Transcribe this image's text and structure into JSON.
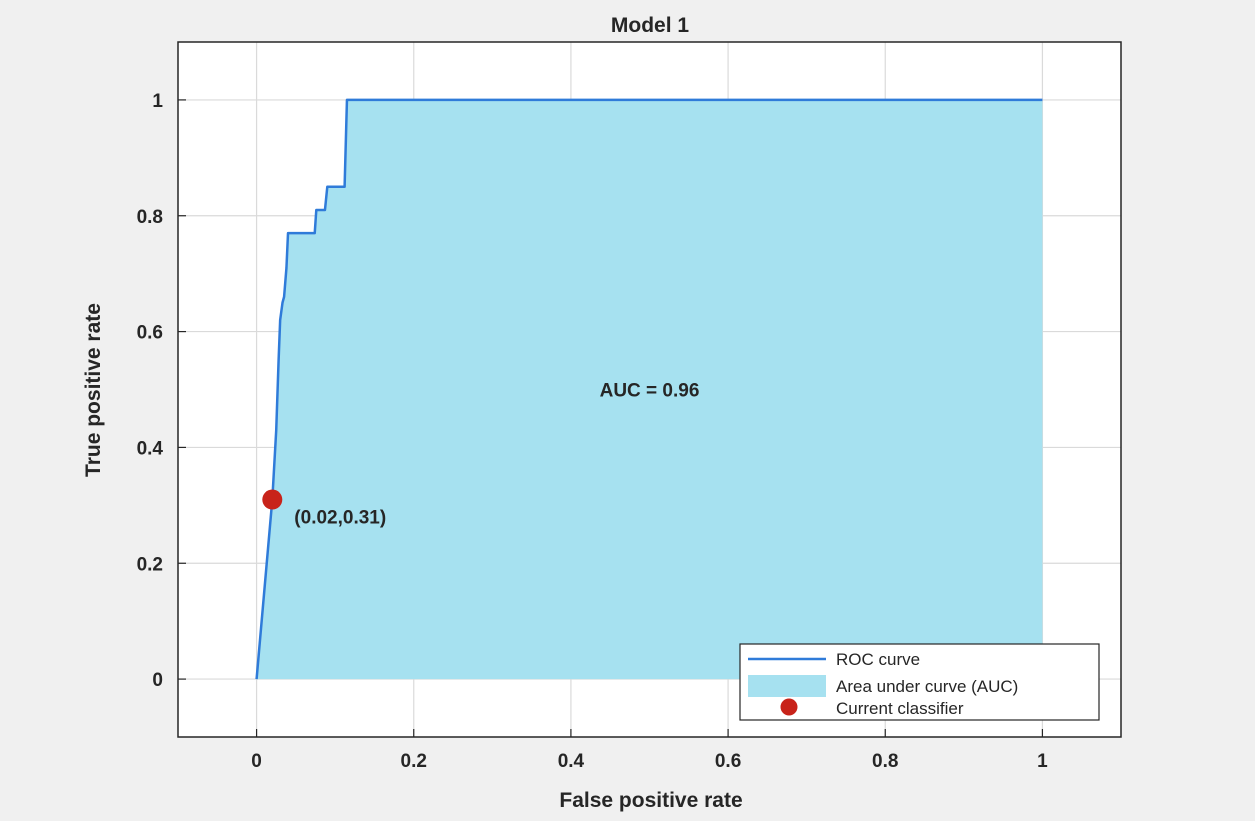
{
  "chart_data": {
    "type": "line",
    "title": "Model 1",
    "xlabel": "False positive rate",
    "ylabel": "True positive rate",
    "xlim": [
      -0.1,
      1.1
    ],
    "ylim": [
      -0.1,
      1.1
    ],
    "xticks": [
      0,
      0.2,
      0.4,
      0.6,
      0.8,
      1
    ],
    "yticks": [
      0,
      0.2,
      0.4,
      0.6,
      0.8,
      1
    ],
    "xtick_labels": [
      "0",
      "0.2",
      "0.4",
      "0.6",
      "0.8",
      "1"
    ],
    "ytick_labels": [
      "0",
      "0.2",
      "0.4",
      "0.6",
      "0.8",
      "1"
    ],
    "grid": true,
    "legend_position": "bottom-right",
    "series": [
      {
        "name": "ROC curve",
        "color": "#2f7bd9",
        "x": [
          0,
          0.02,
          0.025,
          0.028,
          0.03,
          0.033,
          0.035,
          0.038,
          0.04,
          0.074,
          0.076,
          0.087,
          0.09,
          0.1,
          0.102,
          0.112,
          0.115,
          1
        ],
        "y": [
          0,
          0.31,
          0.43,
          0.55,
          0.62,
          0.65,
          0.66,
          0.71,
          0.77,
          0.77,
          0.81,
          0.81,
          0.85,
          0.85,
          0.85,
          0.85,
          1.0,
          1.0
        ]
      }
    ],
    "area": {
      "name": "Area under curve (AUC)",
      "color": "#a6e1f0"
    },
    "point": {
      "name": "Current classifier",
      "x": 0.02,
      "y": 0.31,
      "color": "#c8231a",
      "label": "(0.02,0.31)"
    },
    "annotations": [
      {
        "text": "AUC = 0.96"
      }
    ]
  }
}
